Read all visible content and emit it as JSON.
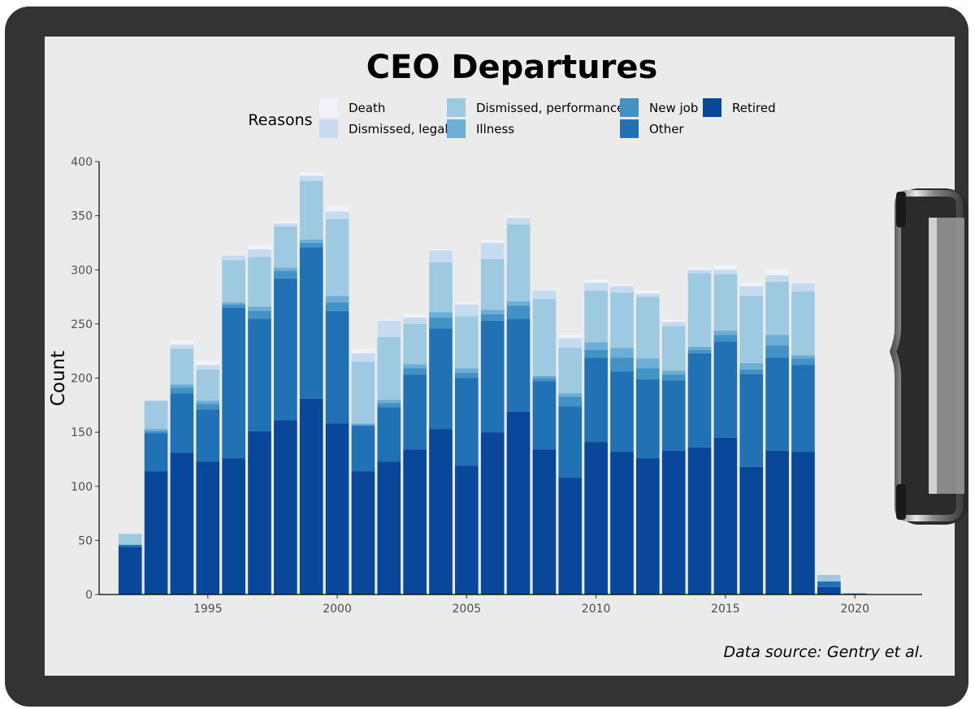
{
  "chart_data": {
    "type": "bar",
    "stacked": true,
    "title": "CEO Departures",
    "xlabel": "",
    "ylabel": "Count",
    "ylim": [
      0,
      400
    ],
    "xlim": [
      1990.8,
      2022.6
    ],
    "y_ticks": [
      "0",
      "50",
      "100",
      "150",
      "200",
      "250",
      "300",
      "350",
      "400"
    ],
    "x_ticks": [
      "1995",
      "2000",
      "2005",
      "2010",
      "2015",
      "2020"
    ],
    "legend_title": "Reasons",
    "legend_position": "top",
    "grid": false,
    "caption": "Data source: Gentry et al.",
    "x": [
      1992,
      1993,
      1994,
      1995,
      1996,
      1997,
      1998,
      1999,
      2000,
      2001,
      2002,
      2003,
      2004,
      2005,
      2006,
      2007,
      2008,
      2009,
      2010,
      2011,
      2012,
      2013,
      2014,
      2015,
      2016,
      2017,
      2018,
      2019,
      2020
    ],
    "series": [
      {
        "name": "Retired",
        "color": "#08479a",
        "values": [
          44,
          114,
          131,
          123,
          126,
          151,
          161,
          181,
          158,
          114,
          123,
          134,
          153,
          119,
          150,
          169,
          134,
          108,
          141,
          132,
          126,
          133,
          136,
          145,
          118,
          133,
          132,
          7,
          0
        ]
      },
      {
        "name": "Other",
        "color": "#2171b5",
        "values": [
          2,
          35,
          55,
          48,
          139,
          104,
          131,
          140,
          104,
          42,
          50,
          69,
          93,
          81,
          103,
          86,
          63,
          66,
          78,
          74,
          73,
          65,
          87,
          89,
          86,
          86,
          80,
          5,
          1
        ]
      },
      {
        "name": "New job",
        "color": "#4292c6",
        "values": [
          0,
          2,
          5,
          5,
          3,
          7,
          7,
          4,
          8,
          1,
          4,
          6,
          10,
          5,
          6,
          12,
          3,
          9,
          7,
          13,
          10,
          5,
          3,
          6,
          4,
          11,
          6,
          0,
          0
        ]
      },
      {
        "name": "Illness",
        "color": "#6baed6",
        "values": [
          0,
          2,
          3,
          3,
          2,
          4,
          3,
          3,
          6,
          1,
          3,
          4,
          5,
          4,
          4,
          4,
          2,
          3,
          7,
          9,
          9,
          4,
          3,
          4,
          6,
          10,
          3,
          0,
          0
        ]
      },
      {
        "name": "Dismissed, performance",
        "color": "#9ecae1",
        "values": [
          10,
          26,
          33,
          29,
          39,
          46,
          38,
          54,
          71,
          57,
          58,
          37,
          46,
          48,
          47,
          71,
          71,
          42,
          48,
          51,
          57,
          41,
          68,
          52,
          62,
          49,
          59,
          6,
          0
        ]
      },
      {
        "name": "Dismissed, legal",
        "color": "#c6dbef",
        "values": [
          0,
          0,
          4,
          4,
          4,
          7,
          3,
          5,
          7,
          8,
          15,
          6,
          11,
          11,
          15,
          6,
          8,
          9,
          7,
          6,
          3,
          4,
          3,
          4,
          9,
          6,
          8,
          0,
          0
        ]
      },
      {
        "name": "Death",
        "color": "#f2f2fb",
        "values": [
          0,
          0,
          4,
          4,
          0,
          4,
          2,
          3,
          5,
          4,
          1,
          3,
          1,
          2,
          2,
          2,
          1,
          3,
          3,
          2,
          3,
          2,
          2,
          4,
          3,
          5,
          1,
          0,
          0
        ]
      }
    ]
  }
}
